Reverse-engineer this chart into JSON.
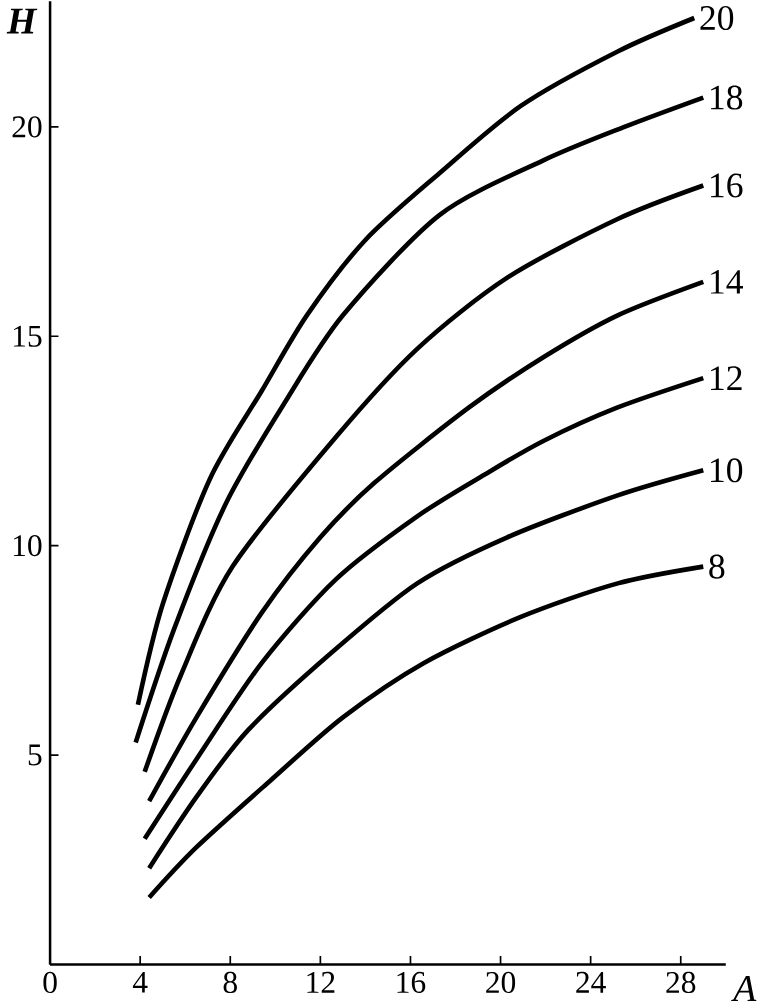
{
  "chart_data": {
    "type": "line",
    "xlabel": "A",
    "ylabel": "H",
    "xlim": [
      0,
      30
    ],
    "ylim": [
      0,
      23
    ],
    "xticks": [
      0,
      4,
      8,
      12,
      16,
      20,
      24,
      28
    ],
    "yticks": [
      5,
      10,
      15,
      20
    ],
    "grid": false,
    "legend": false,
    "marker": "none",
    "line_style": "solid",
    "series": [
      {
        "name": "20",
        "color": "#000000",
        "x": [
          3.9,
          5.0,
          7.1,
          9.4,
          11.4,
          14.0,
          17.3,
          20.9,
          25.2,
          28.6
        ],
        "values": [
          6.2,
          8.6,
          11.6,
          13.7,
          15.5,
          17.3,
          18.9,
          20.5,
          21.8,
          22.6
        ]
      },
      {
        "name": "18",
        "color": "#000000",
        "x": [
          3.8,
          5.5,
          7.8,
          10.4,
          13.0,
          17.3,
          21.9,
          25.5,
          29.0
        ],
        "values": [
          5.3,
          8.0,
          11.0,
          13.4,
          15.5,
          17.9,
          19.2,
          20.0,
          20.7
        ]
      },
      {
        "name": "16",
        "color": "#000000",
        "x": [
          4.2,
          5.8,
          8.1,
          12.7,
          16.3,
          20.3,
          25.2,
          29.0
        ],
        "values": [
          4.6,
          6.9,
          9.5,
          12.6,
          14.7,
          16.4,
          17.8,
          18.6
        ]
      },
      {
        "name": "14",
        "color": "#000000",
        "x": [
          4.4,
          6.5,
          9.4,
          12.0,
          14.4,
          18.6,
          21.9,
          25.2,
          29.0
        ],
        "values": [
          3.9,
          5.9,
          8.4,
          10.2,
          11.5,
          13.3,
          14.5,
          15.5,
          16.3
        ]
      },
      {
        "name": "12",
        "color": "#000000",
        "x": [
          4.2,
          6.5,
          9.4,
          12.7,
          16.3,
          19.3,
          21.9,
          25.2,
          29.0
        ],
        "values": [
          3.0,
          4.9,
          7.2,
          9.2,
          10.7,
          11.7,
          12.5,
          13.3,
          14.0
        ]
      },
      {
        "name": "10",
        "color": "#000000",
        "x": [
          4.4,
          6.5,
          8.8,
          12.4,
          16.3,
          20.3,
          25.2,
          29.0
        ],
        "values": [
          2.3,
          4.0,
          5.6,
          7.4,
          9.1,
          10.2,
          11.2,
          11.8
        ]
      },
      {
        "name": "8",
        "color": "#000000",
        "x": [
          4.4,
          6.5,
          9.8,
          13.0,
          16.6,
          20.9,
          25.2,
          29.0
        ],
        "values": [
          1.6,
          2.8,
          4.4,
          5.9,
          7.2,
          8.3,
          9.1,
          9.5
        ]
      }
    ]
  }
}
